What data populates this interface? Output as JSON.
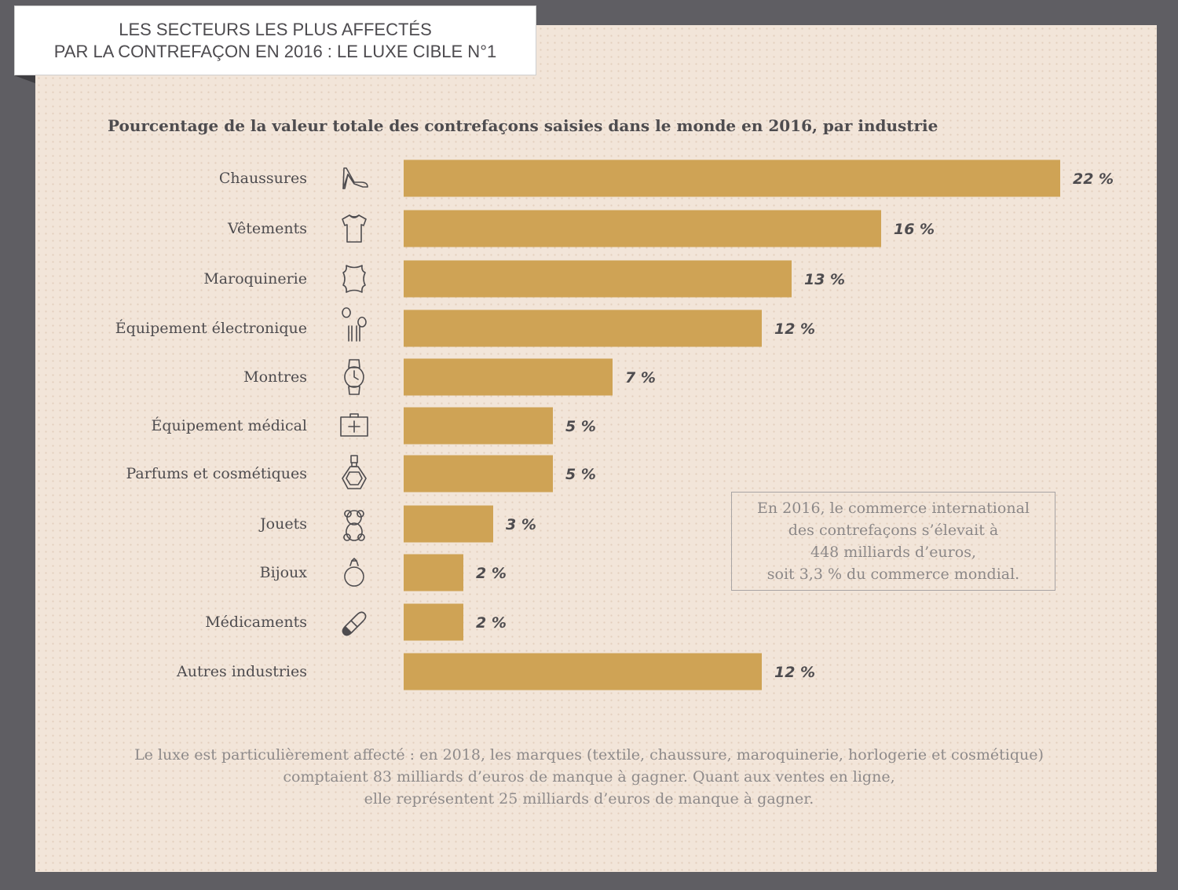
{
  "header": {
    "title_line1": "LES SECTEURS LES PLUS AFFECTÉS",
    "title_line2": "PAR LA CONTREFAÇON EN 2016 : LE LUXE CIBLE N°1"
  },
  "subtitle": "Pourcentage de la valeur totale des contrefaçons saisies dans le monde en 2016, par industrie",
  "chart_data": {
    "type": "bar",
    "orientation": "horizontal",
    "categories": [
      "Chaussures",
      "Vêtements",
      "Maroquinerie",
      "Équipement électronique",
      "Montres",
      "Équipement médical",
      "Parfums et cosmétiques",
      "Jouets",
      "Bijoux",
      "Médicaments",
      "Autres industries"
    ],
    "values": [
      22,
      16,
      13,
      12,
      7,
      5,
      5,
      3,
      2,
      2,
      12
    ],
    "value_labels": [
      "22 %",
      "16 %",
      "13 %",
      "12 %",
      "7 %",
      "5 %",
      "5 %",
      "3 %",
      "2 %",
      "2 %",
      "12 %"
    ],
    "icons": [
      "high-heel-icon",
      "tshirt-icon",
      "leather-hide-icon",
      "earphones-icon",
      "watch-icon",
      "medical-kit-icon",
      "perfume-bottle-icon",
      "teddy-bear-icon",
      "ring-icon",
      "pill-icon",
      ""
    ],
    "xlim": [
      0,
      22
    ],
    "bar_color": "#cfa355"
  },
  "note": {
    "line1": "En 2016, le commerce international",
    "line2": "des contrefaçons s’élevait à",
    "line3": "448 milliards d’euros,",
    "line4": "soit 3,3 % du commerce mondial."
  },
  "footer": {
    "line1": "Le luxe est particulièrement affecté : en 2018, les marques (textile, chaussure, maroquinerie, horlogerie et cosmétique)",
    "line2": "comptaient 83 milliards d’euros de manque à gagner. Quant aux ventes en ligne,",
    "line3": "elle représentent 25 milliards d’euros de manque à gagner."
  },
  "colors": {
    "background": "#5f5e63",
    "panel": "#f2e5d9",
    "bar": "#cfa355",
    "text": "#4e4c4f",
    "muted_text": "#8e8a8a"
  }
}
